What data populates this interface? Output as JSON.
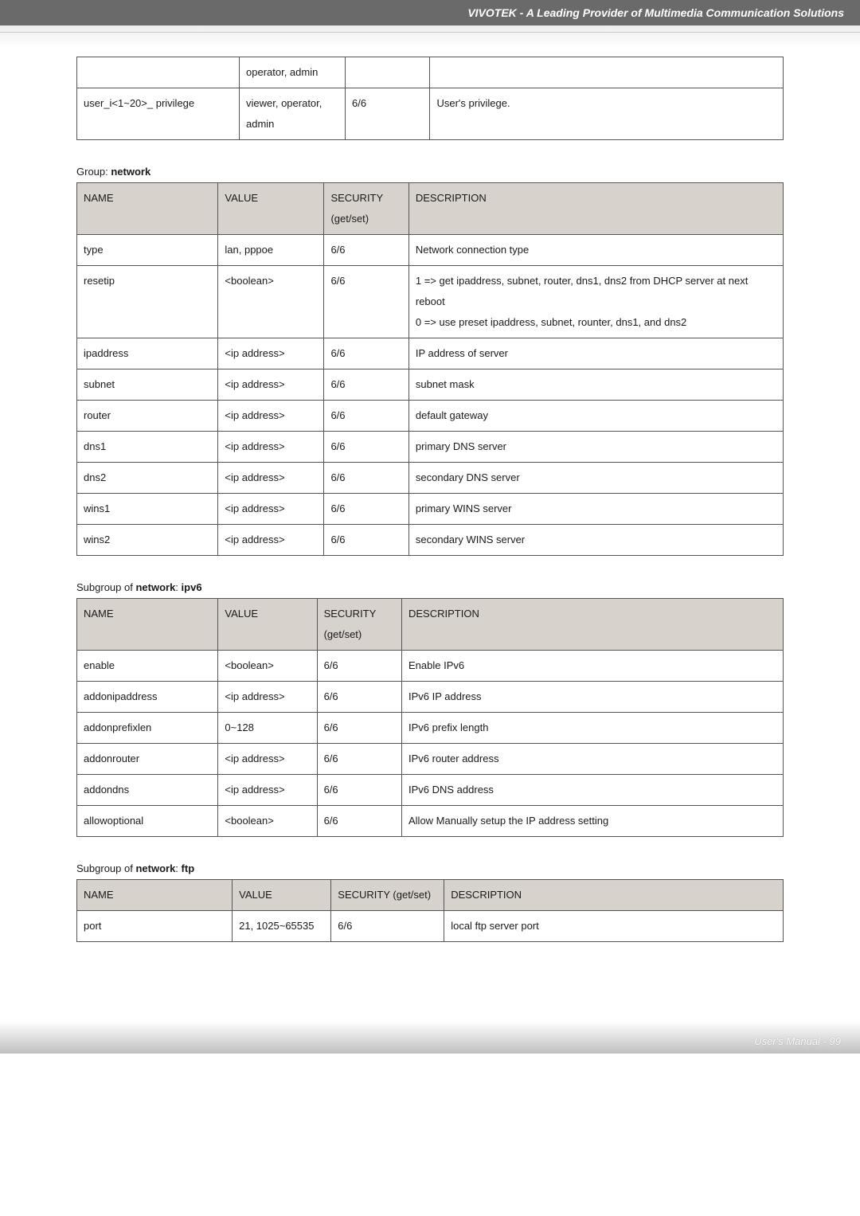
{
  "page": {
    "header_title": "VIVOTEK - A Leading Provider of Multimedia Communication Solutions",
    "footer_text": "User's Manual - 99"
  },
  "colors": {
    "header_bg": "#6a6a6a",
    "header_text": "#ffffff",
    "table_header_bg": "#d7d2cb",
    "border": "#555555",
    "text": "#1a1a1a",
    "footer_text": "#ffffff"
  },
  "tableA": {
    "rows": [
      {
        "c0": "",
        "c1": "operator, admin",
        "c2": "",
        "c3": ""
      },
      {
        "c0": "user_i<1~20>_ privilege",
        "c1": "viewer, operator, admin",
        "c2": "6/6",
        "c3": "User's privilege."
      }
    ]
  },
  "labels": {
    "group_network_pre": "Group: ",
    "group_network_bold": "network",
    "subgroup_ipv6_pre": "Subgroup of ",
    "subgroup_ipv6_bold1": "network",
    "subgroup_ipv6_mid": ": ",
    "subgroup_ipv6_bold2": "ipv6",
    "subgroup_ftp_pre": "Subgroup of ",
    "subgroup_ftp_bold1": "network",
    "subgroup_ftp_mid": ": ",
    "subgroup_ftp_bold2": "ftp"
  },
  "tableB": {
    "headers": {
      "h0": "NAME",
      "h1": "VALUE",
      "h2": "SECURITY (get/set)",
      "h3": "DESCRIPTION"
    },
    "rows": [
      {
        "c0": "type",
        "c1": "lan, pppoe",
        "c2": "6/6",
        "c3": "Network connection type"
      },
      {
        "c0": "resetip",
        "c1": "<boolean>",
        "c2": "6/6",
        "c3": "1 => get ipaddress, subnet, router, dns1, dns2 from DHCP server at next reboot\n0 => use preset ipaddress, subnet, rounter, dns1, and dns2"
      },
      {
        "c0": "ipaddress",
        "c1": "<ip address>",
        "c2": "6/6",
        "c3": "IP address of server"
      },
      {
        "c0": "subnet",
        "c1": "<ip address>",
        "c2": "6/6",
        "c3": "subnet mask"
      },
      {
        "c0": "router",
        "c1": "<ip address>",
        "c2": "6/6",
        "c3": "default gateway"
      },
      {
        "c0": "dns1",
        "c1": "<ip address>",
        "c2": "6/6",
        "c3": "primary DNS server"
      },
      {
        "c0": "dns2",
        "c1": "<ip address>",
        "c2": "6/6",
        "c3": "secondary DNS server"
      },
      {
        "c0": "wins1",
        "c1": "<ip address>",
        "c2": "6/6",
        "c3": "primary WINS server"
      },
      {
        "c0": "wins2",
        "c1": "<ip address>",
        "c2": "6/6",
        "c3": "secondary WINS server"
      }
    ]
  },
  "tableC": {
    "headers": {
      "h0": "NAME",
      "h1": "VALUE",
      "h2": "SECURITY (get/set)",
      "h3": "DESCRIPTION"
    },
    "rows": [
      {
        "c0": "enable",
        "c1": "<boolean>",
        "c2": "6/6",
        "c3": "Enable IPv6"
      },
      {
        "c0": "addonipaddress",
        "c1": "<ip address>",
        "c2": "6/6",
        "c3": "IPv6 IP address"
      },
      {
        "c0": "addonprefixlen",
        "c1": "0~128",
        "c2": "6/6",
        "c3": "IPv6 prefix length"
      },
      {
        "c0": "addonrouter",
        "c1": "<ip address>",
        "c2": "6/6",
        "c3": "IPv6 router address"
      },
      {
        "c0": "addondns",
        "c1": "<ip address>",
        "c2": "6/6",
        "c3": "IPv6 DNS address"
      },
      {
        "c0": "allowoptional",
        "c1": "<boolean>",
        "c2": "6/6",
        "c3": "Allow Manually setup the IP address setting"
      }
    ]
  },
  "tableD": {
    "headers": {
      "h0": "NAME",
      "h1": "VALUE",
      "h2": "SECURITY (get/set)",
      "h3": "DESCRIPTION"
    },
    "rows": [
      {
        "c0": "port",
        "c1": "21, 1025~65535",
        "c2": "6/6",
        "c3": "local ftp server port"
      }
    ]
  }
}
